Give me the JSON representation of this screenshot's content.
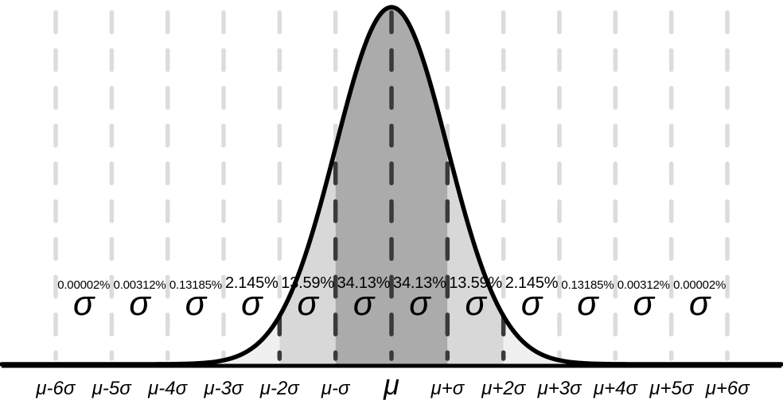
{
  "chart_data": {
    "type": "area",
    "curve": "normal-distribution-pdf",
    "x_axis_labels": [
      "μ-6σ",
      "μ-5σ",
      "μ-4σ",
      "μ-3σ",
      "μ-2σ",
      "μ-σ",
      "μ",
      "μ+σ",
      "μ+2σ",
      "μ+3σ",
      "μ+4σ",
      "μ+5σ",
      "μ+6σ"
    ],
    "bands": [
      {
        "percent": "0.00002%",
        "symbol": "σ",
        "fill": "none"
      },
      {
        "percent": "0.00312%",
        "symbol": "σ",
        "fill": "none"
      },
      {
        "percent": "0.13185%",
        "symbol": "σ",
        "fill": "none"
      },
      {
        "percent": "2.145%",
        "symbol": "σ",
        "fill": "#f0f0f0"
      },
      {
        "percent": "13.59%",
        "symbol": "σ",
        "fill": "#d8d8d8"
      },
      {
        "percent": "34.13%",
        "symbol": "σ",
        "fill": "#ababab"
      },
      {
        "percent": "34.13%",
        "symbol": "σ",
        "fill": "#ababab"
      },
      {
        "percent": "13.59%",
        "symbol": "σ",
        "fill": "#d8d8d8"
      },
      {
        "percent": "2.145%",
        "symbol": "σ",
        "fill": "#f0f0f0"
      },
      {
        "percent": "0.13185%",
        "symbol": "σ",
        "fill": "none"
      },
      {
        "percent": "0.00312%",
        "symbol": "σ",
        "fill": "none"
      },
      {
        "percent": "0.00002%",
        "symbol": "σ",
        "fill": "none"
      }
    ],
    "dark_dashed_line_positions": [
      "μ-3σ",
      "μ-2σ",
      "μ-σ",
      "μ",
      "μ+σ",
      "μ+2σ",
      "μ+3σ"
    ],
    "colors": {
      "light_dash": "#dcdcdc",
      "dark_dash": "#3a3a3a",
      "curve": "#000000",
      "baseline": "#000000"
    }
  }
}
